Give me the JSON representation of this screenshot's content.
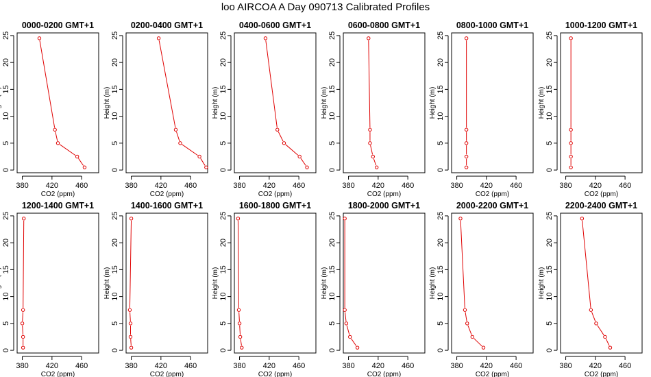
{
  "title": "loo AIRCOA A  Day 090713  Calibrated Profiles",
  "series_color": "#e00000",
  "chart_data": [
    {
      "type": "line",
      "title": "0000-0200 GMT+1",
      "xlabel": "CO2 (ppm)",
      "ylabel": "Height (m)",
      "xlim": [
        373,
        483
      ],
      "ylim": [
        -0.5,
        25.5
      ],
      "xticks": [
        380,
        420,
        460
      ],
      "yticks": [
        0,
        5,
        10,
        15,
        20,
        25
      ],
      "x": [
        464,
        454,
        428,
        424,
        403
      ],
      "y": [
        0.5,
        2.5,
        5,
        7.5,
        24.5
      ]
    },
    {
      "type": "line",
      "title": "0200-0400 GMT+1",
      "xlabel": "CO2 (ppm)",
      "ylabel": "Height (m)",
      "xlim": [
        373,
        483
      ],
      "ylim": [
        -0.5,
        25.5
      ],
      "xticks": [
        380,
        420,
        460
      ],
      "yticks": [
        0,
        5,
        10,
        15,
        20,
        25
      ],
      "x": [
        481,
        472,
        446,
        440,
        417
      ],
      "y": [
        0.5,
        2.5,
        5,
        7.5,
        24.5
      ]
    },
    {
      "type": "line",
      "title": "0400-0600 GMT+1",
      "xlabel": "CO2 (ppm)",
      "ylabel": "Height (m)",
      "xlim": [
        373,
        483
      ],
      "ylim": [
        -0.5,
        25.5
      ],
      "xticks": [
        380,
        420,
        460
      ],
      "yticks": [
        0,
        5,
        10,
        15,
        20,
        25
      ],
      "x": [
        471,
        461,
        440,
        431,
        415
      ],
      "y": [
        0.5,
        2.5,
        5,
        7.5,
        24.5
      ]
    },
    {
      "type": "line",
      "title": "0600-0800 GMT+1",
      "xlabel": "CO2 (ppm)",
      "ylabel": "Height (m)",
      "xlim": [
        373,
        483
      ],
      "ylim": [
        -0.5,
        25.5
      ],
      "xticks": [
        380,
        420,
        460
      ],
      "yticks": [
        0,
        5,
        10,
        15,
        20,
        25
      ],
      "x": [
        418,
        413,
        409,
        409,
        407
      ],
      "y": [
        0.5,
        2.5,
        5,
        7.5,
        24.5
      ]
    },
    {
      "type": "line",
      "title": "0800-1000 GMT+1",
      "xlabel": "CO2 (ppm)",
      "ylabel": "Height (m)",
      "xlim": [
        373,
        483
      ],
      "ylim": [
        -0.5,
        25.5
      ],
      "xticks": [
        380,
        420,
        460
      ],
      "yticks": [
        0,
        5,
        10,
        15,
        20,
        25
      ],
      "x": [
        393,
        393,
        393,
        393,
        393
      ],
      "y": [
        0.5,
        2.5,
        5,
        7.5,
        24.5
      ]
    },
    {
      "type": "line",
      "title": "1000-1200 GMT+1",
      "xlabel": "CO2 (ppm)",
      "ylabel": "Height (m)",
      "xlim": [
        373,
        483
      ],
      "ylim": [
        -0.5,
        25.5
      ],
      "xticks": [
        380,
        420,
        460
      ],
      "yticks": [
        0,
        5,
        10,
        15,
        20,
        25
      ],
      "x": [
        387,
        387,
        387,
        387,
        387
      ],
      "y": [
        0.5,
        2.5,
        5,
        7.5,
        24.5
      ]
    },
    {
      "type": "line",
      "title": "1200-1400 GMT+1",
      "xlabel": "CO2 (ppm)",
      "ylabel": "Height (m)",
      "xlim": [
        373,
        483
      ],
      "ylim": [
        -0.5,
        25.5
      ],
      "xticks": [
        380,
        420,
        460
      ],
      "yticks": [
        0,
        5,
        10,
        15,
        20,
        25
      ],
      "x": [
        381,
        381,
        380,
        381,
        382
      ],
      "y": [
        0.5,
        2.5,
        5,
        7.5,
        24.5
      ]
    },
    {
      "type": "line",
      "title": "1400-1600 GMT+1",
      "xlabel": "CO2 (ppm)",
      "ylabel": "Height (m)",
      "xlim": [
        373,
        483
      ],
      "ylim": [
        -0.5,
        25.5
      ],
      "xticks": [
        380,
        420,
        460
      ],
      "yticks": [
        0,
        5,
        10,
        15,
        20,
        25
      ],
      "x": [
        380,
        379,
        379,
        378,
        380
      ],
      "y": [
        0.5,
        2.5,
        5,
        7.5,
        24.5
      ]
    },
    {
      "type": "line",
      "title": "1600-1800 GMT+1",
      "xlabel": "CO2 (ppm)",
      "ylabel": "Height (m)",
      "xlim": [
        373,
        483
      ],
      "ylim": [
        -0.5,
        25.5
      ],
      "xticks": [
        380,
        420,
        460
      ],
      "yticks": [
        0,
        5,
        10,
        15,
        20,
        25
      ],
      "x": [
        383,
        381,
        380,
        379,
        378
      ],
      "y": [
        0.5,
        2.5,
        5,
        7.5,
        24.5
      ]
    },
    {
      "type": "line",
      "title": "1800-2000 GMT+1",
      "xlabel": "CO2 (ppm)",
      "ylabel": "Height (m)",
      "xlim": [
        373,
        483
      ],
      "ylim": [
        -0.5,
        25.5
      ],
      "xticks": [
        380,
        420,
        460
      ],
      "yticks": [
        0,
        5,
        10,
        15,
        20,
        25
      ],
      "x": [
        392,
        382,
        377,
        375,
        375
      ],
      "y": [
        0.5,
        2.5,
        5,
        7.5,
        24.5
      ]
    },
    {
      "type": "line",
      "title": "2000-2200 GMT+1",
      "xlabel": "CO2 (ppm)",
      "ylabel": "Height (m)",
      "xlim": [
        373,
        483
      ],
      "ylim": [
        -0.5,
        25.5
      ],
      "xticks": [
        380,
        420,
        460
      ],
      "yticks": [
        0,
        5,
        10,
        15,
        20,
        25
      ],
      "x": [
        416,
        401,
        394,
        391,
        385
      ],
      "y": [
        0.5,
        2.5,
        5,
        7.5,
        24.5
      ]
    },
    {
      "type": "line",
      "title": "2200-2400 GMT+1",
      "xlabel": "CO2 (ppm)",
      "ylabel": "Height (m)",
      "xlim": [
        373,
        483
      ],
      "ylim": [
        -0.5,
        25.5
      ],
      "xticks": [
        380,
        420,
        460
      ],
      "yticks": [
        0,
        5,
        10,
        15,
        20,
        25
      ],
      "x": [
        440,
        433,
        421,
        414,
        402
      ],
      "y": [
        0.5,
        2.5,
        5,
        7.5,
        24.5
      ]
    }
  ]
}
